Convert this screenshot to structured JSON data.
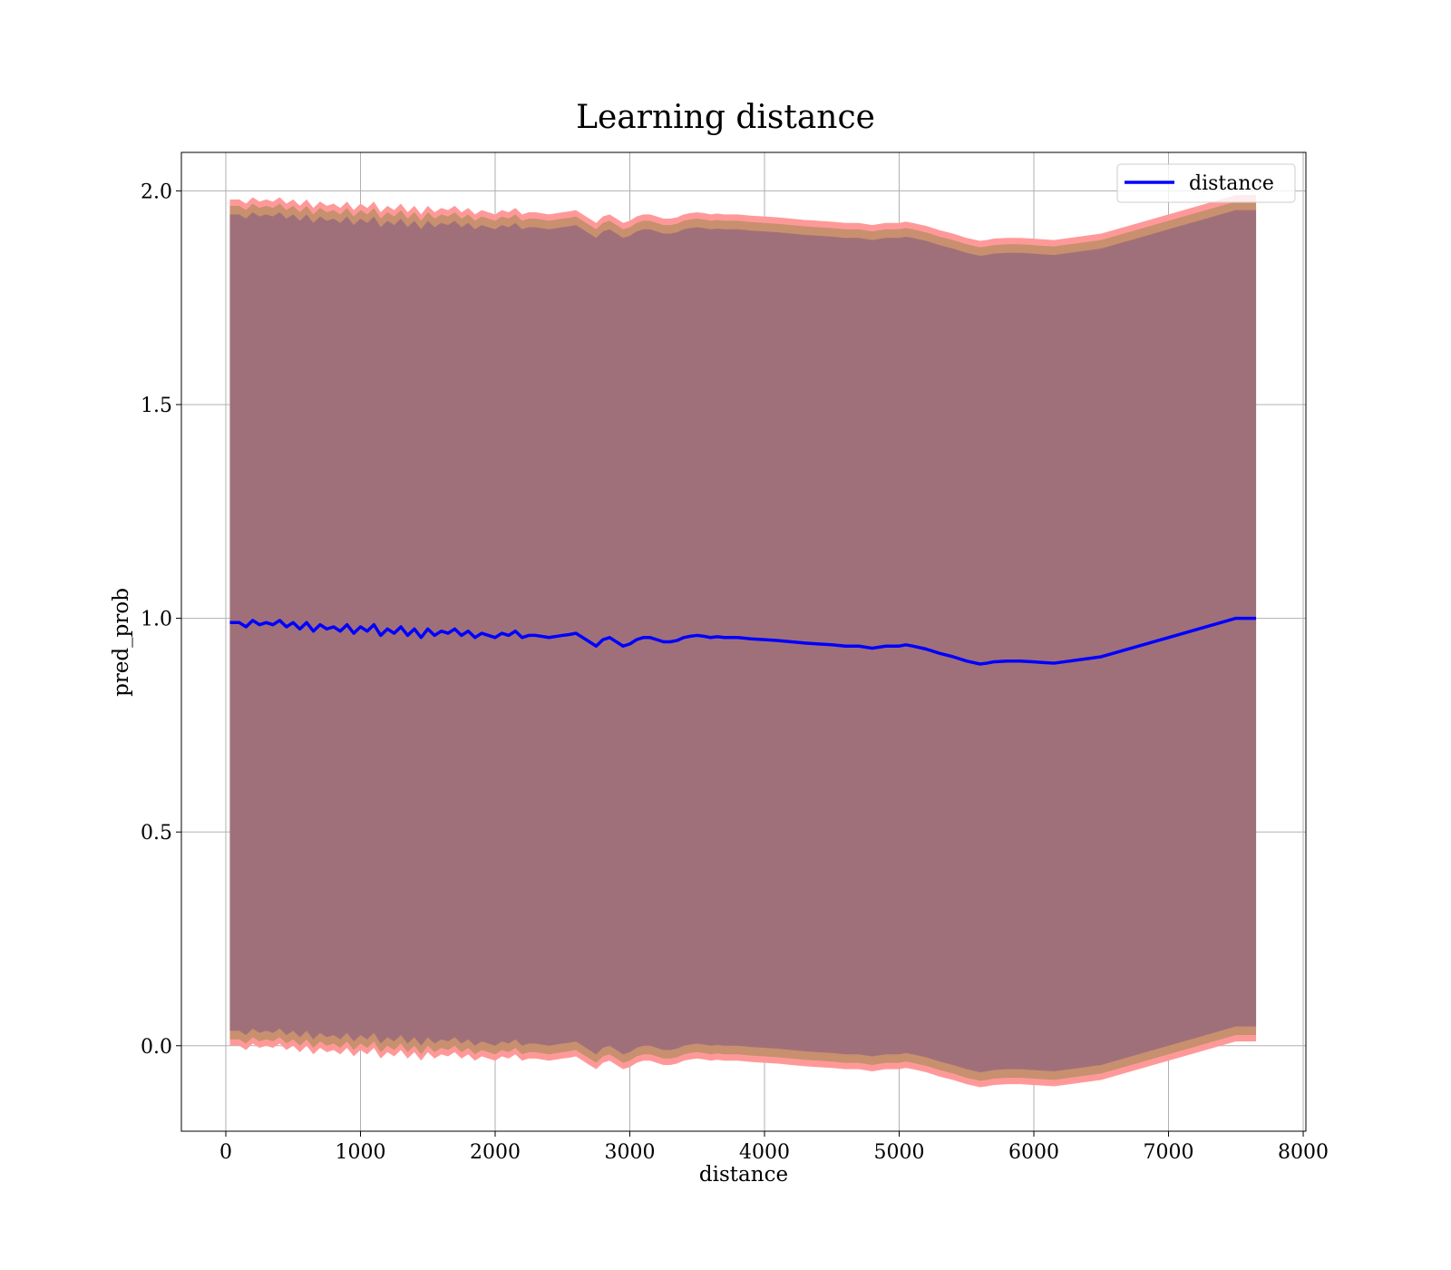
{
  "chart_data": {
    "type": "line",
    "title": "Learning distance",
    "xlabel": "distance",
    "ylabel": "pred_prob",
    "xlim": [
      -330,
      8020
    ],
    "ylim": [
      -0.2,
      2.09
    ],
    "xticks": [
      0,
      1000,
      2000,
      3000,
      4000,
      5000,
      6000,
      7000,
      8000
    ],
    "xtick_labels": [
      "0",
      "1000",
      "2000",
      "3000",
      "4000",
      "5000",
      "6000",
      "7000",
      "8000"
    ],
    "yticks": [
      0.0,
      0.5,
      1.0,
      1.5,
      2.0
    ],
    "ytick_labels": [
      "0.0",
      "0.5",
      "1.0",
      "1.5",
      "2.0"
    ],
    "grid": true,
    "legend_position": "upper-right",
    "colors": {
      "line": "#0000ff",
      "band_outer": "#ff9999",
      "band_middle": "#c8906e",
      "band_inner": "#a0707a",
      "grid": "#b0b0b0"
    },
    "series": [
      {
        "name": "distance",
        "x": [
          30,
          100,
          150,
          200,
          250,
          300,
          350,
          400,
          450,
          500,
          550,
          600,
          650,
          700,
          750,
          800,
          850,
          900,
          950,
          1000,
          1050,
          1100,
          1150,
          1200,
          1250,
          1300,
          1350,
          1400,
          1450,
          1500,
          1550,
          1600,
          1650,
          1700,
          1750,
          1800,
          1850,
          1900,
          1950,
          2000,
          2050,
          2100,
          2150,
          2200,
          2250,
          2300,
          2400,
          2500,
          2550,
          2600,
          2650,
          2700,
          2750,
          2800,
          2850,
          2900,
          2950,
          3000,
          3050,
          3100,
          3150,
          3200,
          3250,
          3300,
          3350,
          3400,
          3450,
          3500,
          3550,
          3600,
          3650,
          3700,
          3750,
          3800,
          3900,
          4000,
          4100,
          4200,
          4300,
          4400,
          4500,
          4600,
          4700,
          4800,
          4900,
          5000,
          5050,
          5100,
          5200,
          5300,
          5400,
          5500,
          5600,
          5650,
          5700,
          5800,
          5900,
          6000,
          6100,
          6150,
          6500,
          7000,
          7500,
          7650
        ],
        "y": [
          0.99,
          0.99,
          0.98,
          0.995,
          0.985,
          0.99,
          0.985,
          0.995,
          0.98,
          0.99,
          0.975,
          0.99,
          0.97,
          0.985,
          0.975,
          0.98,
          0.97,
          0.985,
          0.965,
          0.98,
          0.97,
          0.985,
          0.96,
          0.975,
          0.965,
          0.98,
          0.96,
          0.975,
          0.955,
          0.975,
          0.96,
          0.97,
          0.965,
          0.975,
          0.96,
          0.97,
          0.955,
          0.965,
          0.96,
          0.955,
          0.965,
          0.96,
          0.97,
          0.955,
          0.96,
          0.96,
          0.955,
          0.96,
          0.962,
          0.965,
          0.955,
          0.945,
          0.935,
          0.95,
          0.955,
          0.945,
          0.935,
          0.94,
          0.95,
          0.955,
          0.955,
          0.95,
          0.945,
          0.945,
          0.948,
          0.955,
          0.958,
          0.96,
          0.958,
          0.955,
          0.957,
          0.955,
          0.955,
          0.955,
          0.952,
          0.95,
          0.948,
          0.945,
          0.942,
          0.94,
          0.938,
          0.935,
          0.935,
          0.93,
          0.935,
          0.935,
          0.938,
          0.935,
          0.928,
          0.918,
          0.91,
          0.9,
          0.893,
          0.895,
          0.898,
          0.9,
          0.9,
          0.898,
          0.896,
          0.895,
          0.91,
          0.955,
          1.0,
          1.0
        ]
      }
    ],
    "bands": [
      {
        "color": "band_outer",
        "half_width": 0.99
      },
      {
        "color": "band_middle",
        "half_width": 0.975
      },
      {
        "color": "band_inner",
        "half_width": 0.955
      }
    ],
    "legend": [
      {
        "label": "distance"
      }
    ]
  }
}
